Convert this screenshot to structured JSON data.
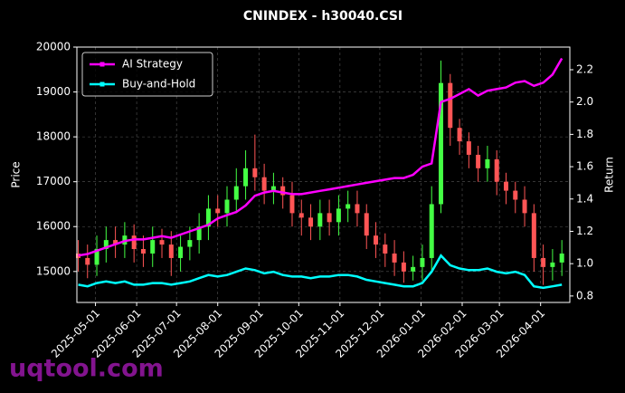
{
  "chart_data": {
    "type": "candlestick",
    "title": "CNINDEX - h30040.CSI",
    "ylabel": "Price",
    "y2label": "Return",
    "watermark": "uqtool.com",
    "up_color": "#44ff44",
    "down_color": "#ff5555",
    "x": [
      "2025-04-18",
      "2025-04-25",
      "2025-05-02",
      "2025-05-09",
      "2025-05-16",
      "2025-05-23",
      "2025-05-30",
      "2025-06-06",
      "2025-06-13",
      "2025-06-20",
      "2025-06-27",
      "2025-07-04",
      "2025-07-11",
      "2025-07-18",
      "2025-07-25",
      "2025-08-01",
      "2025-08-08",
      "2025-08-15",
      "2025-08-22",
      "2025-08-29",
      "2025-09-05",
      "2025-09-12",
      "2025-09-19",
      "2025-09-26",
      "2025-10-03",
      "2025-10-10",
      "2025-10-17",
      "2025-10-24",
      "2025-10-31",
      "2025-11-07",
      "2025-11-14",
      "2025-11-21",
      "2025-11-28",
      "2025-12-05",
      "2025-12-12",
      "2025-12-19",
      "2025-12-26",
      "2026-01-02",
      "2026-01-09",
      "2026-01-16",
      "2026-01-23",
      "2026-01-30",
      "2026-02-06",
      "2026-02-13",
      "2026-02-20",
      "2026-02-27",
      "2026-03-06",
      "2026-03-13",
      "2026-03-20",
      "2026-03-27",
      "2026-04-03",
      "2026-04-10",
      "2026-04-17"
    ],
    "open": [
      15400,
      15300,
      15150,
      15500,
      15700,
      15600,
      15800,
      15500,
      15400,
      15700,
      15600,
      15300,
      15550,
      15700,
      16000,
      16400,
      16300,
      16600,
      16900,
      17300,
      17100,
      16800,
      16900,
      16700,
      16300,
      16200,
      16000,
      16300,
      16100,
      16400,
      16500,
      16300,
      15800,
      15600,
      15400,
      15200,
      15000,
      15100,
      15300,
      16500,
      19200,
      18200,
      17900,
      17600,
      17300,
      17500,
      17000,
      16800,
      16600,
      16300,
      15300,
      15100,
      15200
    ],
    "high": [
      15700,
      15600,
      15800,
      16000,
      16000,
      16100,
      16050,
      15800,
      16000,
      15950,
      15900,
      15800,
      16000,
      16300,
      16700,
      16700,
      16900,
      17300,
      17700,
      18050,
      17400,
      17200,
      17100,
      17000,
      16600,
      16500,
      16600,
      16600,
      16700,
      16800,
      16800,
      16500,
      16100,
      15850,
      15700,
      15450,
      15350,
      15600,
      16900,
      19700,
      19400,
      18400,
      18100,
      17800,
      17800,
      17700,
      17200,
      17000,
      16900,
      16500,
      15600,
      15500,
      15700
    ],
    "low": [
      15000,
      14850,
      14900,
      15200,
      15300,
      15300,
      15200,
      15100,
      15100,
      15300,
      14900,
      15000,
      15250,
      15400,
      15700,
      16000,
      16000,
      16300,
      16600,
      16800,
      16500,
      16500,
      16400,
      16000,
      15800,
      15700,
      15700,
      15800,
      15800,
      16100,
      16000,
      15500,
      15300,
      15100,
      14900,
      14750,
      14800,
      14800,
      15000,
      16300,
      17800,
      17600,
      17300,
      17000,
      17000,
      16700,
      16500,
      16300,
      16000,
      15000,
      14700,
      14800,
      14900
    ],
    "close": [
      15300,
      15150,
      15500,
      15700,
      15600,
      15800,
      15500,
      15400,
      15700,
      15600,
      15300,
      15550,
      15700,
      16000,
      16400,
      16300,
      16600,
      16900,
      17300,
      17100,
      16800,
      16900,
      16700,
      16300,
      16200,
      16000,
      16300,
      16100,
      16400,
      16500,
      16300,
      15800,
      15600,
      15400,
      15200,
      15000,
      15100,
      15300,
      16500,
      19200,
      18200,
      17900,
      17600,
      17300,
      17500,
      17000,
      16800,
      16600,
      16300,
      15300,
      15100,
      15200,
      15400
    ],
    "series": [
      {
        "name": "AI Strategy",
        "color": "#ff00ff",
        "axis": "y2",
        "values": [
          1.05,
          1.06,
          1.08,
          1.1,
          1.12,
          1.14,
          1.15,
          1.15,
          1.16,
          1.17,
          1.16,
          1.18,
          1.2,
          1.22,
          1.24,
          1.28,
          1.3,
          1.32,
          1.36,
          1.42,
          1.44,
          1.45,
          1.44,
          1.43,
          1.43,
          1.44,
          1.45,
          1.46,
          1.47,
          1.48,
          1.49,
          1.5,
          1.51,
          1.52,
          1.53,
          1.53,
          1.55,
          1.6,
          1.62,
          2.0,
          2.02,
          2.05,
          2.08,
          2.04,
          2.07,
          2.08,
          2.09,
          2.12,
          2.13,
          2.1,
          2.12,
          2.17,
          2.27
        ]
      },
      {
        "name": "Buy-and-Hold",
        "color": "#00ffff",
        "axis": "y2",
        "values": [
          0.87,
          0.86,
          0.88,
          0.89,
          0.88,
          0.89,
          0.87,
          0.87,
          0.88,
          0.88,
          0.87,
          0.88,
          0.89,
          0.91,
          0.93,
          0.92,
          0.93,
          0.95,
          0.97,
          0.96,
          0.94,
          0.95,
          0.93,
          0.92,
          0.92,
          0.91,
          0.92,
          0.92,
          0.93,
          0.93,
          0.92,
          0.9,
          0.89,
          0.88,
          0.87,
          0.86,
          0.86,
          0.88,
          0.95,
          1.05,
          0.99,
          0.97,
          0.96,
          0.96,
          0.97,
          0.95,
          0.94,
          0.95,
          0.93,
          0.86,
          0.85,
          0.86,
          0.87
        ]
      }
    ],
    "xlim": [
      "2025-04-17",
      "2026-04-23"
    ],
    "xticks": [
      "2025-05-01",
      "2025-06-01",
      "2025-07-01",
      "2025-08-01",
      "2025-09-01",
      "2025-10-01",
      "2025-11-01",
      "2025-12-01",
      "2026-01-01",
      "2026-02-01",
      "2026-03-01",
      "2026-04-01"
    ],
    "ylim": [
      14310,
      20000
    ],
    "yticks": [
      15000,
      16000,
      17000,
      18000,
      19000,
      20000
    ],
    "y2lim": [
      0.76,
      2.34
    ],
    "y2ticks": [
      0.8,
      {
        "value": 1,
        "label": "1.0"
      },
      1.2,
      1.4,
      1.6,
      1.8,
      {
        "value": 2,
        "label": "2.0"
      },
      2.2
    ],
    "grid": true,
    "legend": "upper left"
  }
}
